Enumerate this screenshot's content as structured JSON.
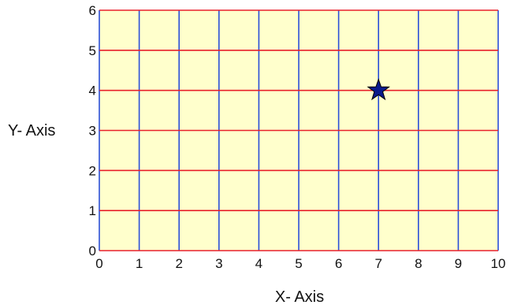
{
  "chart_data": {
    "type": "scatter",
    "title": "",
    "xlabel": "X- Axis",
    "ylabel": "Y- Axis",
    "xlim": [
      0,
      10
    ],
    "ylim": [
      0,
      6
    ],
    "x_ticks": [
      "0",
      "1",
      "2",
      "3",
      "4",
      "5",
      "6",
      "7",
      "8",
      "9",
      "10"
    ],
    "y_ticks": [
      "0",
      "1",
      "2",
      "3",
      "4",
      "5",
      "6"
    ],
    "grid": true,
    "points": [
      {
        "x": 7,
        "y": 4,
        "marker": "star"
      }
    ],
    "colors": {
      "background": "#ffffcc",
      "vertical_gridlines": "#2b4fd8",
      "horizontal_gridlines": "#e8212b",
      "marker": "#0a1a8c"
    }
  }
}
